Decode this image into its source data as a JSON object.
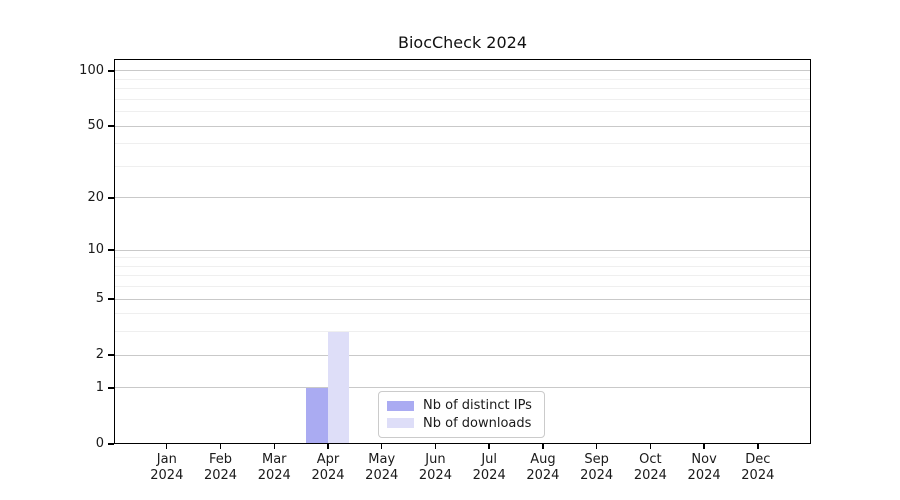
{
  "title": "BiocCheck 2024",
  "chart_data": {
    "type": "bar",
    "title": "BiocCheck 2024",
    "categories": [
      "Jan",
      "Feb",
      "Mar",
      "Apr",
      "May",
      "Jun",
      "Jul",
      "Aug",
      "Sep",
      "Oct",
      "Nov",
      "Dec"
    ],
    "year_label": "2024",
    "series": [
      {
        "name": "Nb of distinct IPs",
        "color": "#aaabf2",
        "values": [
          0,
          0,
          0,
          1,
          0,
          0,
          0,
          0,
          0,
          0,
          0,
          0
        ]
      },
      {
        "name": "Nb of downloads",
        "color": "#dedef8",
        "values": [
          0,
          0,
          0,
          3,
          0,
          0,
          0,
          0,
          0,
          0,
          0,
          0
        ]
      }
    ],
    "y_axis": {
      "scale": "log1p",
      "tick_values": [
        0,
        1,
        2,
        5,
        10,
        20,
        50,
        100
      ],
      "minor_gridline_values": [
        3,
        4,
        6,
        7,
        8,
        9,
        30,
        40,
        60,
        70,
        80,
        90
      ],
      "ylim": [
        0,
        116
      ]
    },
    "xlabel": "",
    "ylabel": "",
    "grid": true,
    "legend_position": "lower center",
    "colors": {
      "major_grid": "#c9c9c9",
      "minor_grid": "#efefef",
      "axis": "#000000",
      "background": "#ffffff"
    }
  }
}
